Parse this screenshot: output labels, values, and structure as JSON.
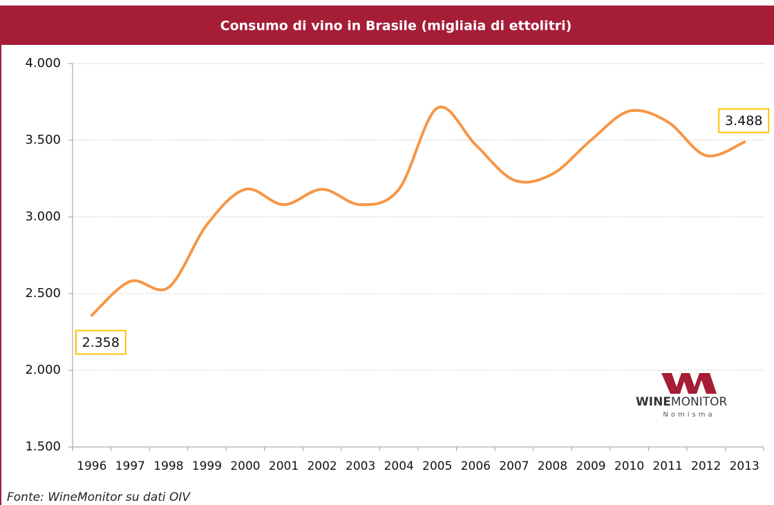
{
  "chart_data": {
    "type": "line",
    "title": "Consumo di vino in Brasile (migliaia di ettolitri)",
    "categories": [
      "1996",
      "1997",
      "1998",
      "1999",
      "2000",
      "2001",
      "2002",
      "2003",
      "2004",
      "2005",
      "2006",
      "2007",
      "2008",
      "2009",
      "2010",
      "2011",
      "2012",
      "2013"
    ],
    "series": [
      {
        "name": "Consumo",
        "color": "#f79646",
        "values": [
          2358,
          2580,
          2540,
          2950,
          3180,
          3080,
          3180,
          3080,
          3180,
          3710,
          3470,
          3240,
          3280,
          3500,
          3690,
          3620,
          3400,
          3488
        ],
        "value_labels": [
          "2.358",
          null,
          null,
          null,
          null,
          null,
          null,
          null,
          null,
          null,
          null,
          null,
          null,
          null,
          null,
          null,
          null,
          "3.488"
        ]
      }
    ],
    "ylim": [
      1500,
      4000
    ],
    "yticks": [
      {
        "value": 1500,
        "label": "1.500"
      },
      {
        "value": 2000,
        "label": "2.000"
      },
      {
        "value": 2500,
        "label": "2.500"
      },
      {
        "value": 3000,
        "label": "3.000"
      },
      {
        "value": 3500,
        "label": "3.500"
      },
      {
        "value": 4000,
        "label": "4.000"
      }
    ],
    "grid": true,
    "source": "Fonte: WineMonitor su dati OIV",
    "logo": {
      "bold": "WINE",
      "rest": "MONITOR",
      "sub": "Nomisma"
    }
  }
}
